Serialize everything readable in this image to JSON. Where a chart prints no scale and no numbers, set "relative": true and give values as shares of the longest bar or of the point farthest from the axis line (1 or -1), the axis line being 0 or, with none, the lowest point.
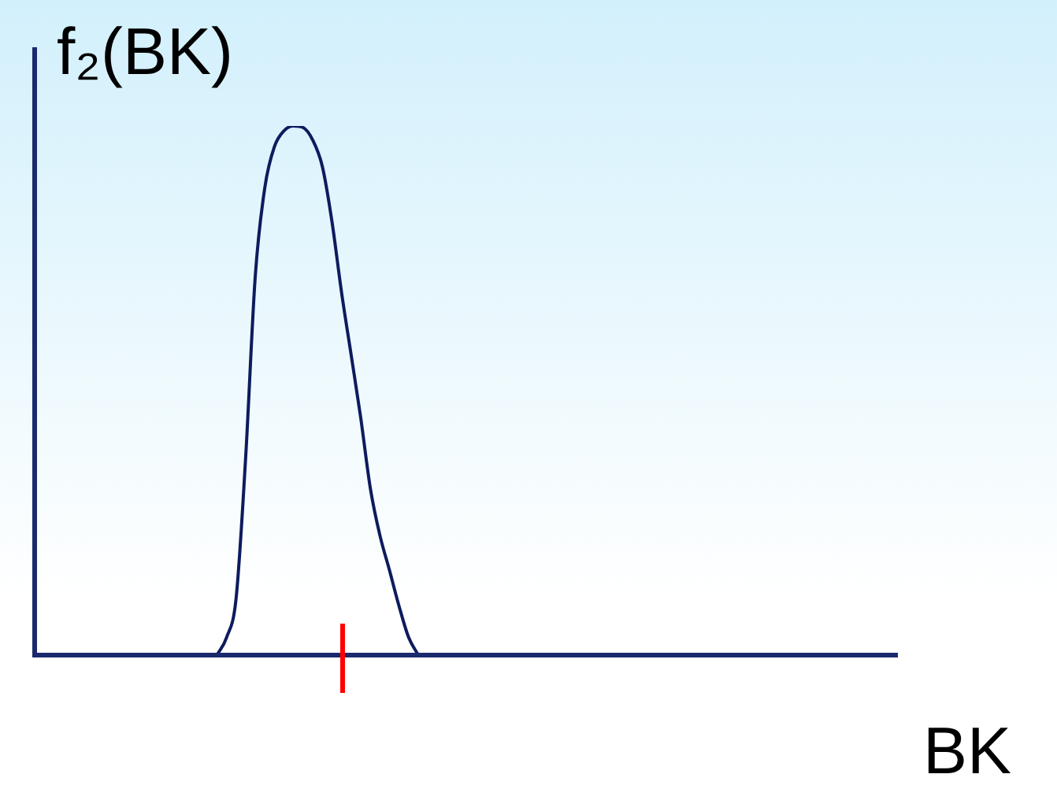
{
  "chart_data": {
    "type": "line",
    "relative": true,
    "xlabel": "BK",
    "ylabel": "f₂(BK)",
    "marker": "none",
    "color": "#0d1b5e",
    "categories": [
      null,
      null,
      null,
      null,
      null,
      null,
      null,
      null,
      null,
      null,
      null,
      null,
      null,
      null,
      null,
      null,
      null,
      null,
      null,
      null,
      null,
      null,
      null,
      null,
      null,
      null,
      null,
      null,
      null,
      null,
      null,
      null,
      null,
      null,
      null,
      null,
      null,
      null,
      null,
      null,
      null,
      null,
      null,
      null,
      null,
      null,
      null,
      null,
      null,
      null,
      null,
      null,
      null,
      null,
      null,
      null,
      null,
      null,
      null,
      null,
      null,
      null,
      null,
      null,
      null,
      null,
      null,
      null,
      null,
      null,
      null,
      null,
      null,
      null,
      null,
      null,
      null,
      null,
      null,
      null,
      null,
      null,
      null,
      null,
      null,
      null,
      null,
      null,
      null,
      null,
      null
    ],
    "values": [
      null,
      null,
      null,
      null,
      null,
      null,
      null,
      null,
      null,
      null,
      null,
      null,
      null,
      null,
      null,
      null,
      null,
      null,
      null,
      0,
      0.033,
      0.107,
      0.374,
      0.716,
      0.884,
      0.961,
      0.991,
      1,
      0.997,
      0.973,
      0.923,
      0.819,
      0.685,
      0.567,
      0.448,
      0.315,
      0.226,
      0.16,
      0.092,
      0.033,
      0,
      null,
      null,
      null,
      null,
      null,
      null,
      null,
      null,
      null,
      null,
      null,
      null,
      null,
      null,
      null,
      null,
      null,
      null,
      null,
      null,
      null,
      null,
      null,
      null,
      null,
      null,
      null,
      null,
      null,
      null,
      null,
      null,
      null,
      null,
      null,
      null,
      null,
      null,
      null,
      null,
      null,
      null,
      null,
      null,
      null,
      null,
      null,
      null,
      null,
      null
    ]
  }
}
